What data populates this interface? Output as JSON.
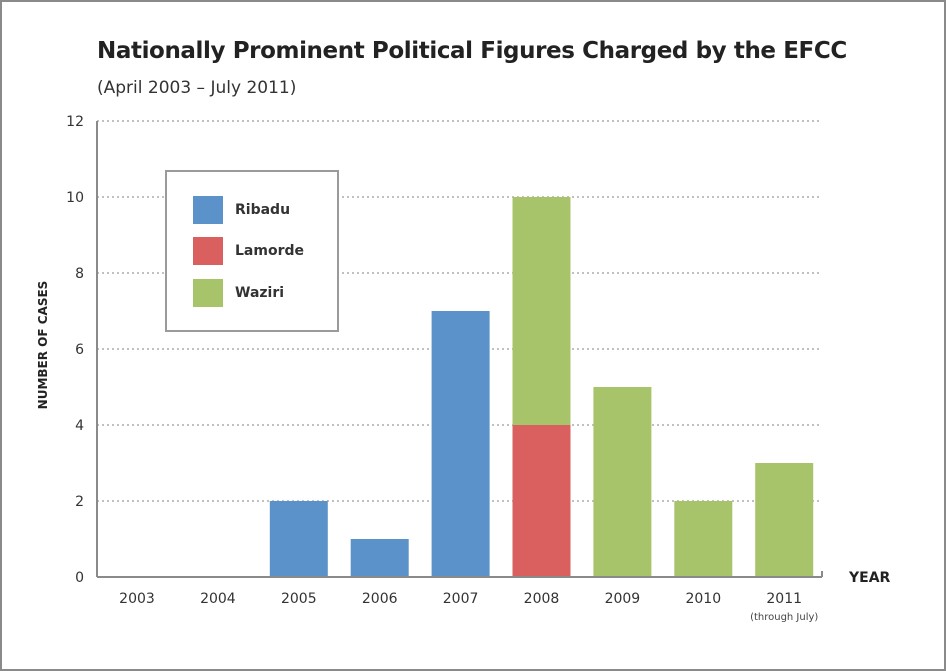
{
  "chart_data": {
    "type": "bar",
    "stacked": true,
    "title": "Nationally Prominent Political Figures Charged by the EFCC",
    "subtitle": "(April 2003 – July 2011)",
    "xlabel": "YEAR",
    "ylabel": "NUMBER OF CASES",
    "ylim": [
      0,
      12
    ],
    "yticks": [
      "0",
      "2",
      "4",
      "6",
      "8",
      "10",
      "12"
    ],
    "grid": true,
    "legend_position": "top-left",
    "categories": [
      "2003",
      "2004",
      "2005",
      "2006",
      "2007",
      "2008",
      "2009",
      "2010",
      "2011"
    ],
    "category_notes": [
      "",
      "",
      "",
      "",
      "",
      "",
      "",
      "",
      "(through July)"
    ],
    "series": [
      {
        "name": "Ribadu",
        "color": "#5b92c9",
        "values": [
          0,
          0,
          2,
          1,
          7,
          0,
          0,
          0,
          0
        ]
      },
      {
        "name": "Lamorde",
        "color": "#d9605f",
        "values": [
          0,
          0,
          0,
          0,
          0,
          4,
          0,
          0,
          0
        ]
      },
      {
        "name": "Waziri",
        "color": "#a8c46a",
        "values": [
          0,
          0,
          0,
          0,
          0,
          6,
          5,
          2,
          3
        ]
      }
    ]
  }
}
